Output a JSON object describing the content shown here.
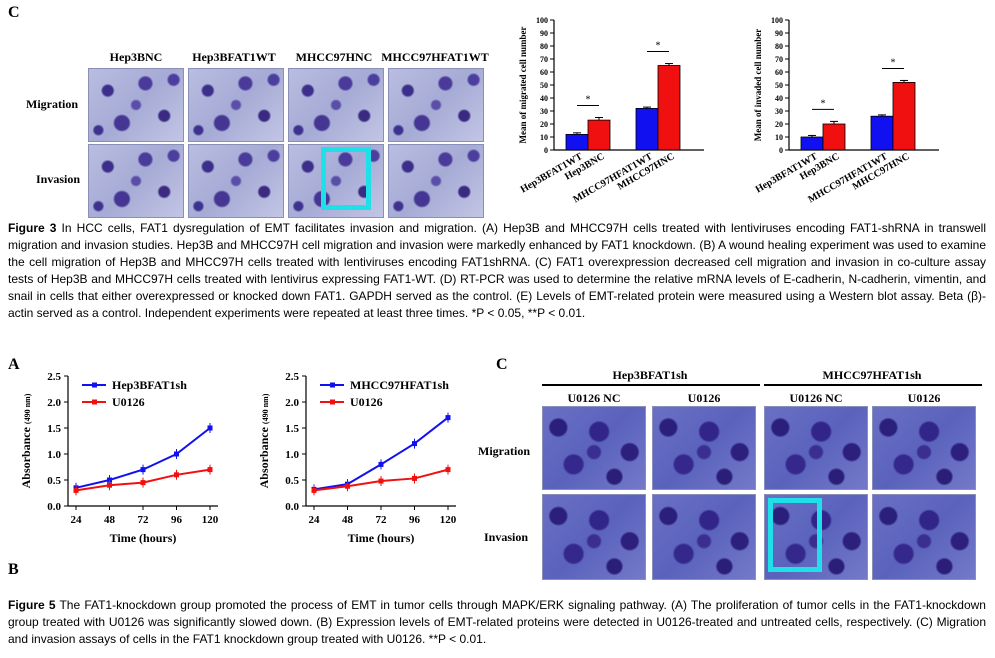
{
  "fig3": {
    "panel_letter": "C",
    "col_labels": [
      "Hep3BNC",
      "Hep3BFAT1WT",
      "MHCC97HNC",
      "MHCC97HFAT1WT"
    ],
    "row_labels": [
      "Migration",
      "Invasion"
    ],
    "caption": {
      "label": "Figure 3",
      "text": "In HCC cells, FAT1 dysregulation of EMT facilitates invasion and migration. (A) Hep3B and MHCC97H cells treated with lentiviruses encoding FAT1-shRNA in transwell migration and invasion studies. Hep3B and MHCC97H cell migration and invasion were markedly enhanced by FAT1 knockdown. (B) A wound healing experiment was used to examine the cell migration of Hep3B and MHCC97H cells treated with lentiviruses encoding FAT1shRNA. (C) FAT1 overexpression decreased cell migration and invasion in co-culture assay tests of Hep3B and MHCC97H cells treated with lentivirus expressing FAT1-WT. (D) RT-PCR was used to determine the relative mRNA levels of E-cadherin, N-cadherin, vimentin, and snail in cells that either overexpressed or knocked down FAT1. GAPDH served as the control. (E) Levels of EMT-related protein were measured using a Western blot assay. Beta (β)-actin served as a control. Independent experiments were repeated at least three times. *P < 0.05, **P < 0.01."
    }
  },
  "fig5": {
    "panel_a": "A",
    "panel_b": "B",
    "panel_c": "C",
    "group_labels": [
      "Hep3BFAT1sh",
      "MHCC97HFAT1sh"
    ],
    "col_labels": [
      "U0126 NC",
      "U0126",
      "U0126 NC",
      "U0126"
    ],
    "row_labels": [
      "Migration",
      "Invasion"
    ],
    "caption": {
      "label": "Figure 5",
      "text": "The FAT1-knockdown group promoted the process of EMT in tumor cells through MAPK/ERK signaling pathway. (A) The proliferation of tumor cells in the FAT1-knockdown group treated with U0126 was significantly slowed down. (B) Expression levels of EMT-related proteins were detected in U0126-treated and untreated cells, respectively. (C) Migration and invasion assays of cells in the FAT1 knockdown group treated with U0126. **P < 0.01."
    }
  },
  "colors": {
    "blue": "#1010f0",
    "red": "#f01010",
    "highlight": "#1fe0e8"
  },
  "chart_data": [
    {
      "type": "bar",
      "ylabel": "Mean of migrated cell number",
      "categories": [
        "Hep3BFAT1WT",
        "Hep3BNC",
        "MHCC97HFAT1WT",
        "MHCC97HNC"
      ],
      "values": [
        12,
        23,
        32,
        65
      ],
      "errors": [
        1.2,
        2,
        1,
        1.5
      ],
      "bar_colors": [
        "#1010f0",
        "#f01010",
        "#1010f0",
        "#f01010"
      ],
      "ylim": [
        0,
        100
      ],
      "yticks": [
        0,
        10,
        20,
        30,
        40,
        50,
        60,
        70,
        80,
        90,
        100
      ],
      "annotations": [
        "*",
        "*"
      ]
    },
    {
      "type": "bar",
      "ylabel": "Mean of invaded cell number",
      "categories": [
        "Hep3BFAT1WT",
        "Hep3BNC",
        "MHCC97HFAT1WT",
        "MHCC97HNC"
      ],
      "values": [
        10,
        20,
        26,
        52
      ],
      "errors": [
        1.2,
        2,
        1,
        1.5
      ],
      "bar_colors": [
        "#1010f0",
        "#f01010",
        "#1010f0",
        "#f01010"
      ],
      "ylim": [
        0,
        100
      ],
      "yticks": [
        0,
        10,
        20,
        30,
        40,
        50,
        60,
        70,
        80,
        90,
        100
      ],
      "annotations": [
        "*",
        "*"
      ]
    },
    {
      "type": "line",
      "xlabel": "Time (hours)",
      "ylabel": "Absorbance",
      "ylabel_unit": "(490 nm)",
      "x": [
        24,
        48,
        72,
        96,
        120
      ],
      "ylim": [
        0,
        2.5
      ],
      "yticks": [
        "0.0",
        "0.5",
        "1.0",
        "1.5",
        "2.0",
        "2.5"
      ],
      "series": [
        {
          "name": "Hep3BFAT1sh",
          "values": [
            0.35,
            0.5,
            0.7,
            1.0,
            1.5
          ],
          "color": "#1010f0"
        },
        {
          "name": "U0126",
          "values": [
            0.3,
            0.4,
            0.45,
            0.6,
            0.7
          ],
          "color": "#f01010"
        }
      ],
      "legend": "top-left"
    },
    {
      "type": "line",
      "xlabel": "Time (hours)",
      "ylabel": "Absorbance",
      "ylabel_unit": "(490 nm)",
      "x": [
        24,
        48,
        72,
        96,
        120
      ],
      "ylim": [
        0,
        2.5
      ],
      "yticks": [
        "0.0",
        "0.5",
        "1.0",
        "1.5",
        "2.0",
        "2.5"
      ],
      "series": [
        {
          "name": "MHCC97HFAT1sh",
          "values": [
            0.32,
            0.42,
            0.8,
            1.2,
            1.7
          ],
          "color": "#1010f0"
        },
        {
          "name": "U0126",
          "values": [
            0.3,
            0.38,
            0.48,
            0.53,
            0.7
          ],
          "color": "#f01010"
        }
      ],
      "legend": "top-left"
    }
  ]
}
